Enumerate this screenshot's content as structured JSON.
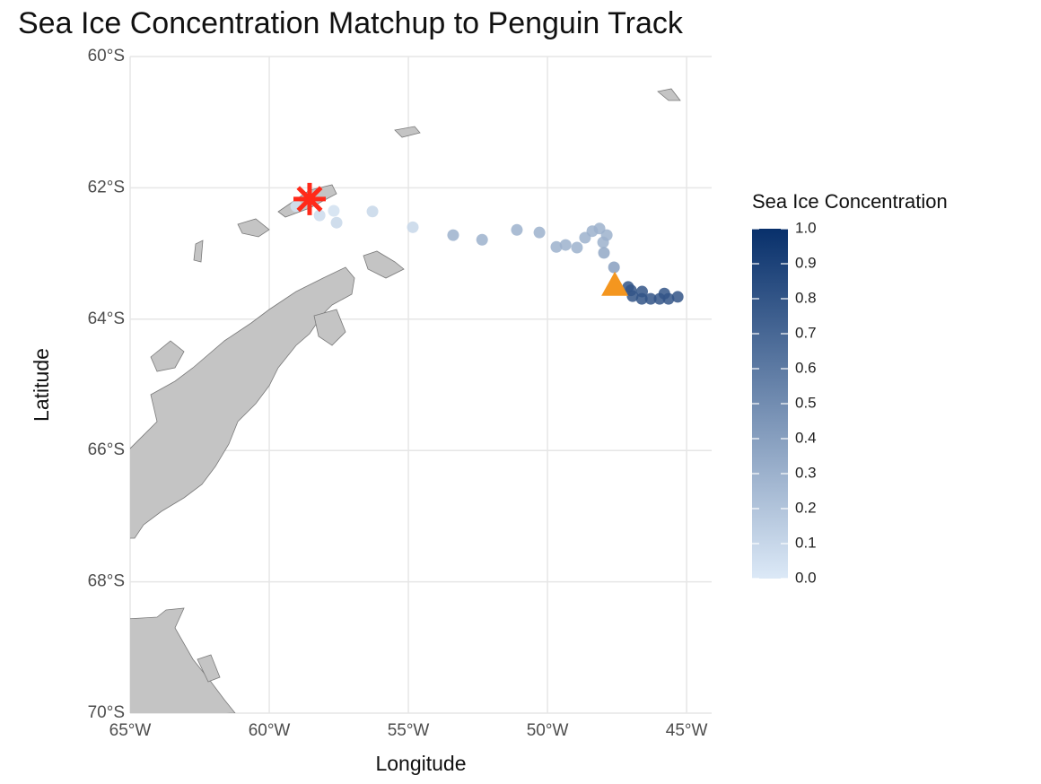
{
  "chart_data": {
    "type": "scatter",
    "title": "Sea Ice Concentration Matchup to Penguin Track",
    "x_label": "Longitude",
    "y_label": "Latitude",
    "legend_title": "Sea Ice Concentration",
    "xlim": [
      -65,
      -44.1
    ],
    "ylim": [
      -70,
      -60
    ],
    "xticks": [
      {
        "value": -65,
        "label": "65°W"
      },
      {
        "value": -60,
        "label": "60°W"
      },
      {
        "value": -55,
        "label": "55°W"
      },
      {
        "value": -50,
        "label": "50°W"
      },
      {
        "value": -45,
        "label": "45°W"
      }
    ],
    "yticks": [
      {
        "value": -60,
        "label": "60°S"
      },
      {
        "value": -62,
        "label": "62°S"
      },
      {
        "value": -64,
        "label": "64°S"
      },
      {
        "value": -66,
        "label": "66°S"
      },
      {
        "value": -68,
        "label": "68°S"
      },
      {
        "value": -70,
        "label": "70°S"
      }
    ],
    "grid": true,
    "x": [
      -59.03,
      -58.19,
      -57.68,
      -57.58,
      -56.29,
      -54.84,
      -53.39,
      -52.35,
      -51.1,
      -50.29,
      -49.68,
      -49.35,
      -48.94,
      -48.65,
      -48.39,
      -48.13,
      -47.87,
      -48.0,
      -47.97,
      -47.61,
      -47.1,
      -46.94,
      -46.61,
      -46.29,
      -45.97,
      -45.65,
      -45.32,
      -45.8,
      -46.6,
      -47.0
    ],
    "y": [
      -62.28,
      -62.42,
      -62.35,
      -62.53,
      -62.36,
      -62.6,
      -62.72,
      -62.79,
      -62.64,
      -62.68,
      -62.9,
      -62.87,
      -62.91,
      -62.76,
      -62.66,
      -62.62,
      -62.72,
      -62.83,
      -62.99,
      -63.21,
      -63.51,
      -63.65,
      -63.69,
      -63.69,
      -63.69,
      -63.69,
      -63.66,
      -63.61,
      -63.58,
      -63.56
    ],
    "ice": [
      0.05,
      0.08,
      0.05,
      0.1,
      0.1,
      0.1,
      0.3,
      0.3,
      0.3,
      0.3,
      0.3,
      0.3,
      0.3,
      0.3,
      0.3,
      0.3,
      0.3,
      0.3,
      0.35,
      0.4,
      0.8,
      0.8,
      0.8,
      0.8,
      0.8,
      0.8,
      0.8,
      0.8,
      0.8,
      0.8
    ],
    "start": {
      "x": -58.55,
      "y": -62.17,
      "color": "#ff2a1a"
    },
    "end": {
      "x": -47.58,
      "y": -63.48,
      "color": "#f4961f"
    },
    "colorscale": [
      "#dce9f7",
      "#08306b"
    ],
    "colorlim": [
      0,
      1
    ],
    "colorticks": [
      {
        "value": 0,
        "label": "0.0"
      },
      0.1,
      0.2,
      0.3,
      0.4,
      0.5,
      0.6,
      0.7,
      0.8,
      0.9,
      {
        "value": 1,
        "label": "1.0"
      }
    ]
  }
}
